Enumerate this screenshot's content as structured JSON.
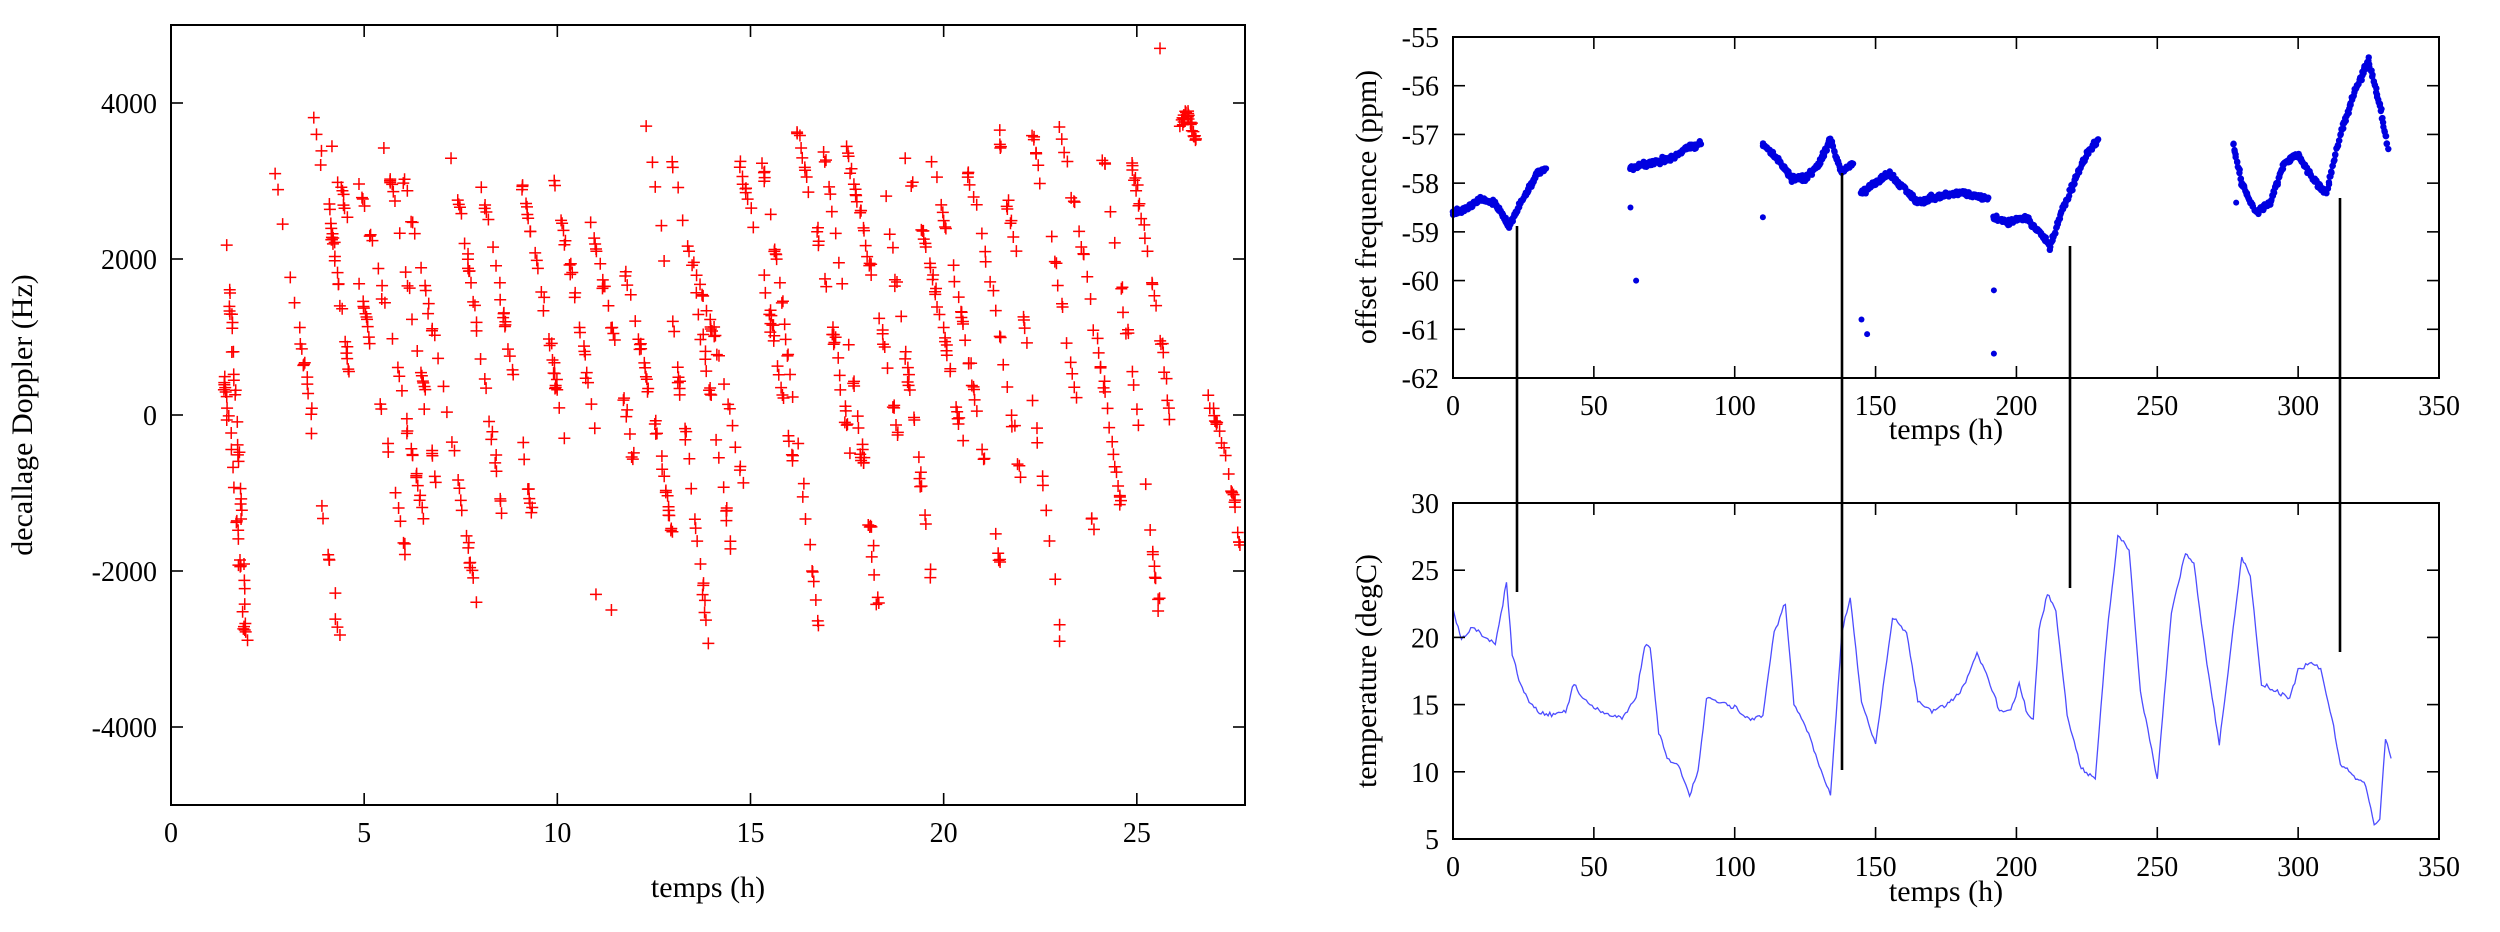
{
  "chart_data": [
    {
      "type": "scatter",
      "xlabel": "temps (h)",
      "ylabel": "decallage Doppler (Hz)",
      "xlim": [
        0,
        27.8
      ],
      "ylim": [
        -5000,
        5000
      ],
      "xticks": [
        "0",
        "5",
        "10",
        "15",
        "20",
        "25"
      ],
      "yticks": [
        "-4000",
        "-2000",
        "0",
        "2000",
        "4000"
      ],
      "marker": "+",
      "color": "#ff0000",
      "grid": false,
      "passes": [
        {
          "x": [
            1.35,
            2.0
          ],
          "y": [
            2900,
            -3100
          ]
        },
        {
          "x": [
            1.35,
            1.9
          ],
          "y": [
            600,
            -2800
          ]
        },
        {
          "x": [
            2.5,
            4.4
          ],
          "y": [
            3700,
            -3000
          ]
        },
        {
          "x": [
            3.7,
            4.6
          ],
          "y": [
            3850,
            500
          ]
        },
        {
          "x": [
            4.1,
            6.1
          ],
          "y": [
            3600,
            -1900
          ]
        },
        {
          "x": [
            4.7,
            6.6
          ],
          "y": [
            3300,
            -1500
          ]
        },
        {
          "x": [
            5.5,
            6.9
          ],
          "y": [
            3500,
            -1000
          ]
        },
        {
          "x": [
            6.0,
            8.0
          ],
          "y": [
            3100,
            -2700
          ]
        },
        {
          "x": [
            7.2,
            8.6
          ],
          "y": [
            3400,
            -1400
          ]
        },
        {
          "x": [
            8.0,
            9.4
          ],
          "y": [
            3000,
            -1500
          ]
        },
        {
          "x": [
            9.1,
            10.2
          ],
          "y": [
            2900,
            -500
          ]
        },
        {
          "x": [
            9.8,
            11.0
          ],
          "y": [
            3200,
            -300
          ]
        },
        {
          "x": [
            10.8,
            12.0
          ],
          "y": [
            2500,
            -700
          ]
        },
        {
          "x": [
            11.6,
            13.0
          ],
          "y": [
            2100,
            -1600
          ]
        },
        {
          "x": [
            12.3,
            14.0
          ],
          "y": [
            3800,
            -3300
          ]
        },
        {
          "x": [
            12.9,
            14.5
          ],
          "y": [
            3500,
            -1700
          ]
        },
        {
          "x": [
            13.5,
            14.8
          ],
          "y": [
            2000,
            -900
          ]
        },
        {
          "x": [
            14.6,
            16.1
          ],
          "y": [
            3500,
            -600
          ]
        },
        {
          "x": [
            15.3,
            16.8
          ],
          "y": [
            3300,
            -2900
          ]
        },
        {
          "x": [
            16.2,
            17.6
          ],
          "y": [
            3700,
            -500
          ]
        },
        {
          "x": [
            16.9,
            18.3
          ],
          "y": [
            3400,
            -2400
          ]
        },
        {
          "x": [
            17.4,
            18.9
          ],
          "y": [
            3600,
            -500
          ]
        },
        {
          "x": [
            18.3,
            19.7
          ],
          "y": [
            3400,
            -2200
          ]
        },
        {
          "x": [
            19.0,
            20.5
          ],
          "y": [
            3300,
            -400
          ]
        },
        {
          "x": [
            19.7,
            21.5
          ],
          "y": [
            3300,
            -2100
          ]
        },
        {
          "x": [
            20.6,
            22.0
          ],
          "y": [
            3200,
            -800
          ]
        },
        {
          "x": [
            21.4,
            23.0
          ],
          "y": [
            3700,
            -2800
          ]
        },
        {
          "x": [
            22.3,
            23.9
          ],
          "y": [
            3600,
            -1500
          ]
        },
        {
          "x": [
            23.0,
            24.6
          ],
          "y": [
            3700,
            -1200
          ]
        },
        {
          "x": [
            24.0,
            25.6
          ],
          "y": [
            3800,
            -2600
          ]
        },
        {
          "x": [
            24.8,
            25.9
          ],
          "y": [
            3400,
            -100
          ]
        },
        {
          "x": [
            26.1,
            26.5
          ],
          "y": [
            3650,
            3550
          ]
        },
        {
          "x": [
            26.8,
            27.8
          ],
          "y": [
            300,
            -2000
          ]
        }
      ],
      "isolated_points": [
        {
          "x": 25.6,
          "y": 4700
        },
        {
          "x": 11.0,
          "y": -2300
        },
        {
          "x": 11.4,
          "y": -2500
        },
        {
          "x": 23.0,
          "y": -2900
        }
      ]
    },
    {
      "type": "scatter",
      "xlabel": "temps (h)",
      "ylabel": "offset frequence (ppm)",
      "xlim": [
        0,
        350
      ],
      "ylim": [
        -62,
        -55
      ],
      "xticks": [
        "0",
        "50",
        "100",
        "150",
        "200",
        "250",
        "300",
        "350"
      ],
      "yticks": [
        "-62",
        "-61",
        "-60",
        "-59",
        "-58",
        "-57",
        "-56",
        "-55"
      ],
      "color": "#0000e0",
      "grid": false,
      "segments": [
        {
          "x": [
            0,
            5,
            10,
            15,
            20,
            25,
            30,
            33
          ],
          "y": [
            -58.6,
            -58.5,
            -58.3,
            -58.4,
            -58.9,
            -58.3,
            -57.8,
            -57.7
          ]
        },
        {
          "x": [
            63,
            70,
            77,
            82,
            88
          ],
          "y": [
            -57.7,
            -57.6,
            -57.5,
            -57.3,
            -57.2
          ]
        },
        {
          "x": [
            110,
            115,
            120,
            125,
            130,
            134,
            138,
            142
          ],
          "y": [
            -57.2,
            -57.5,
            -57.9,
            -57.9,
            -57.6,
            -57.1,
            -57.8,
            -57.6
          ]
        },
        {
          "x": [
            145,
            150,
            155,
            160,
            165,
            170,
            180,
            190
          ],
          "y": [
            -58.2,
            -58.0,
            -57.8,
            -58.1,
            -58.4,
            -58.3,
            -58.2,
            -58.3
          ]
        },
        {
          "x": [
            192,
            197,
            203,
            208,
            212,
            216,
            221,
            225,
            229
          ],
          "y": [
            -58.7,
            -58.8,
            -58.7,
            -59.0,
            -59.3,
            -58.6,
            -57.9,
            -57.4,
            -57.1
          ]
        },
        {
          "x": [
            277,
            280,
            285,
            290,
            295,
            300,
            305,
            310,
            315,
            320,
            325,
            329,
            332
          ],
          "y": [
            -57.2,
            -58.0,
            -58.6,
            -58.4,
            -57.6,
            -57.4,
            -57.9,
            -58.2,
            -57.0,
            -56.1,
            -55.5,
            -56.4,
            -57.3
          ]
        }
      ],
      "isolated_points": [
        {
          "x": 63,
          "y": -58.5
        },
        {
          "x": 65,
          "y": -60.0
        },
        {
          "x": 110,
          "y": -58.7
        },
        {
          "x": 145,
          "y": -60.8
        },
        {
          "x": 147,
          "y": -61.1
        },
        {
          "x": 192,
          "y": -61.5
        },
        {
          "x": 192,
          "y": -60.2
        },
        {
          "x": 278,
          "y": -58.4
        }
      ]
    },
    {
      "type": "line",
      "xlabel": "temps (h)",
      "ylabel": "temperature (degC)",
      "xlim": [
        0,
        350
      ],
      "ylim": [
        5,
        30
      ],
      "xticks": [
        "0",
        "50",
        "100",
        "150",
        "200",
        "250",
        "300",
        "350"
      ],
      "yticks": [
        "5",
        "10",
        "15",
        "20",
        "25",
        "30"
      ],
      "color": "#4d4dff",
      "grid": false,
      "x": [
        0,
        3,
        7,
        11,
        15,
        19,
        21,
        24,
        27,
        30,
        35,
        40,
        43,
        46,
        50,
        55,
        60,
        65,
        68,
        70,
        73,
        76,
        80,
        84,
        87,
        90,
        95,
        100,
        105,
        110,
        114,
        118,
        121,
        125,
        130,
        134,
        138,
        141,
        145,
        150,
        156,
        161,
        165,
        170,
        175,
        180,
        186,
        190,
        194,
        198,
        201,
        204,
        206,
        208,
        211,
        214,
        218,
        223,
        228,
        232,
        236,
        240,
        244,
        250,
        255,
        260,
        263,
        267,
        272,
        277,
        280,
        283,
        287,
        292,
        297,
        300,
        304,
        308,
        312,
        315,
        318,
        321,
        324,
        327,
        329,
        331,
        333
      ],
      "y": [
        22,
        19.8,
        20.8,
        20,
        19.5,
        24,
        18.8,
        16.5,
        15.2,
        14.5,
        14.2,
        14.5,
        16.6,
        15.4,
        14.8,
        14.2,
        14,
        15.5,
        19.4,
        19.3,
        13,
        11,
        10.5,
        8.2,
        10,
        15.5,
        15.2,
        14.8,
        13.8,
        14.2,
        20.5,
        22.5,
        15,
        13.5,
        10.5,
        8.2,
        20.3,
        23,
        15.2,
        12,
        21.5,
        20.5,
        15.2,
        14.5,
        15,
        15.8,
        18.8,
        17,
        14.5,
        14.5,
        16.6,
        14.2,
        14,
        20.5,
        23.2,
        22,
        14.2,
        10.2,
        9.5,
        20,
        27.6,
        26.5,
        16,
        9.5,
        21.8,
        26.3,
        25.5,
        19,
        12,
        20.8,
        26,
        24.5,
        16.5,
        16,
        15.5,
        17.5,
        18.2,
        17.5,
        14,
        10.5,
        10,
        9.5,
        9,
        6,
        6.5,
        12.5,
        11
      ]
    }
  ]
}
